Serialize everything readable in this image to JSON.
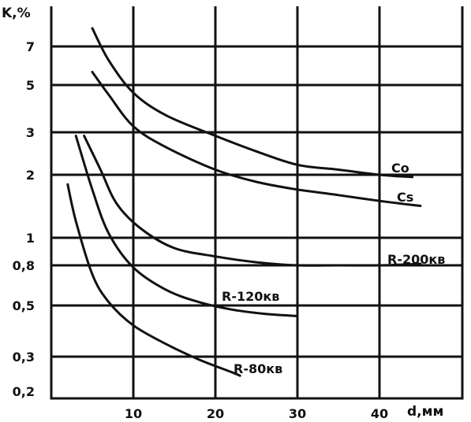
{
  "chart_data": {
    "type": "line",
    "x_axis": {
      "label": "d,мм",
      "range": [
        0,
        45
      ],
      "ticks": [
        10,
        20,
        30,
        40
      ],
      "tick_labels": [
        "10",
        "20",
        "30",
        "40"
      ]
    },
    "y_axis": {
      "label": "K,%",
      "range": [
        0.2,
        8.5
      ],
      "ticks": [
        0.2,
        0.3,
        0.5,
        0.8,
        1,
        2,
        3,
        5,
        7
      ],
      "tick_labels": [
        "0,2",
        "0,3",
        "0,5",
        "0,8",
        "1",
        "2",
        "3",
        "5",
        "7"
      ]
    },
    "grid": true,
    "series": [
      {
        "name": "Co",
        "points": [
          [
            5,
            8.2
          ],
          [
            7,
            6.2
          ],
          [
            10,
            4.6
          ],
          [
            14,
            3.6
          ],
          [
            20,
            2.9
          ],
          [
            25,
            2.5
          ],
          [
            30,
            2.2
          ],
          [
            35,
            2.1
          ],
          [
            40,
            2.0
          ],
          [
            44,
            1.95
          ]
        ]
      },
      {
        "name": "Cs",
        "points": [
          [
            5,
            5.6
          ],
          [
            7,
            4.5
          ],
          [
            10,
            3.2
          ],
          [
            14,
            2.6
          ],
          [
            20,
            2.1
          ],
          [
            25,
            1.85
          ],
          [
            30,
            1.7
          ],
          [
            35,
            1.6
          ],
          [
            40,
            1.5
          ],
          [
            45,
            1.42
          ]
        ]
      },
      {
        "name": "R-200кв",
        "points": [
          [
            4,
            2.9
          ],
          [
            6,
            2.1
          ],
          [
            8,
            1.45
          ],
          [
            11,
            1.1
          ],
          [
            15,
            0.92
          ],
          [
            20,
            0.86
          ],
          [
            25,
            0.82
          ],
          [
            30,
            0.8
          ],
          [
            35,
            0.8
          ],
          [
            40,
            0.8
          ],
          [
            45,
            0.81
          ]
        ]
      },
      {
        "name": "R-120кв",
        "points": [
          [
            3,
            2.9
          ],
          [
            5,
            1.7
          ],
          [
            7,
            1.05
          ],
          [
            10,
            0.78
          ],
          [
            14,
            0.6
          ],
          [
            18,
            0.52
          ],
          [
            22,
            0.48
          ],
          [
            26,
            0.46
          ],
          [
            30,
            0.45
          ]
        ]
      },
      {
        "name": "R-80кв",
        "points": [
          [
            2,
            1.8
          ],
          [
            3,
            1.2
          ],
          [
            5,
            0.72
          ],
          [
            7,
            0.52
          ],
          [
            10,
            0.41
          ],
          [
            14,
            0.34
          ],
          [
            18,
            0.29
          ],
          [
            22,
            0.25
          ],
          [
            23,
            0.24
          ]
        ]
      }
    ]
  }
}
